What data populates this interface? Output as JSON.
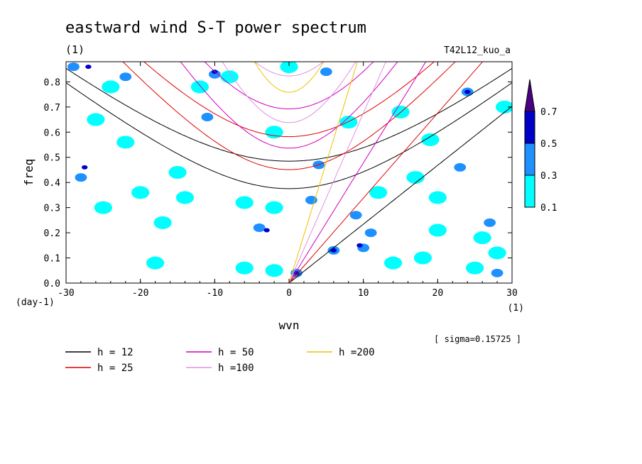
{
  "header": {
    "title": "eastward wind S-T power spectrum",
    "units_note": "(1)",
    "experiment": "T42L12_kuo_a",
    "sigma_note": "[ sigma=0.15725 ]"
  },
  "chart_data": {
    "type": "heatmap",
    "xlabel": "wvn",
    "x_unit": "(1)",
    "ylabel": "freq",
    "y_unit": "(day-1)",
    "xlim": [
      -30,
      30
    ],
    "ylim": [
      0.0,
      0.88
    ],
    "x_ticks": [
      -30,
      -20,
      -10,
      0,
      10,
      20,
      30
    ],
    "y_ticks": [
      0.0,
      0.1,
      0.2,
      0.3,
      0.4,
      0.5,
      0.6,
      0.7,
      0.8
    ],
    "x_tick_labels": [
      "-30",
      "-20",
      "-10",
      "0",
      "10",
      "20",
      "30"
    ],
    "y_tick_labels": [
      "0.0",
      "0.1",
      "0.2",
      "0.3",
      "0.4",
      "0.5",
      "0.6",
      "0.7",
      "0.8"
    ],
    "colorbar": {
      "levels": [
        0.1,
        0.3,
        0.5,
        0.7
      ],
      "level_labels": [
        "0.1",
        "0.3",
        "0.5",
        "0.7"
      ],
      "colors": [
        "#00ffff",
        "#1e90ff",
        "#0000c8",
        "#4b0082"
      ]
    },
    "dispersion_curves": [
      {
        "name": "h = 12",
        "h": 12,
        "color": "#000000"
      },
      {
        "name": "h = 25",
        "h": 25,
        "color": "#e00000"
      },
      {
        "name": "h = 50",
        "h": 50,
        "color": "#d000c0"
      },
      {
        "name": "h =100",
        "h": 100,
        "color": "#e090e0"
      },
      {
        "name": "h =200",
        "h": 200,
        "color": "#f0c000"
      }
    ],
    "blobs": [
      {
        "x": -29,
        "y": 0.86,
        "v": 0.3
      },
      {
        "x": -27,
        "y": 0.86,
        "v": 0.5
      },
      {
        "x": -28,
        "y": 0.42,
        "v": 0.3
      },
      {
        "x": -27.5,
        "y": 0.46,
        "v": 0.5
      },
      {
        "x": -24,
        "y": 0.78,
        "v": 0.1
      },
      {
        "x": -22,
        "y": 0.82,
        "v": 0.3
      },
      {
        "x": -26,
        "y": 0.65,
        "v": 0.1
      },
      {
        "x": -25,
        "y": 0.3,
        "v": 0.1
      },
      {
        "x": -20,
        "y": 0.36,
        "v": 0.1
      },
      {
        "x": -17,
        "y": 0.24,
        "v": 0.1
      },
      {
        "x": -14,
        "y": 0.34,
        "v": 0.1
      },
      {
        "x": -15,
        "y": 0.44,
        "v": 0.1
      },
      {
        "x": -12,
        "y": 0.78,
        "v": 0.1
      },
      {
        "x": -11,
        "y": 0.66,
        "v": 0.3
      },
      {
        "x": -10,
        "y": 0.83,
        "v": 0.3
      },
      {
        "x": -10,
        "y": 0.84,
        "v": 0.5
      },
      {
        "x": -8,
        "y": 0.82,
        "v": 0.1
      },
      {
        "x": -6,
        "y": 0.32,
        "v": 0.1
      },
      {
        "x": -4,
        "y": 0.22,
        "v": 0.3
      },
      {
        "x": -3,
        "y": 0.21,
        "v": 0.5
      },
      {
        "x": -2,
        "y": 0.3,
        "v": 0.1
      },
      {
        "x": 0,
        "y": 0.86,
        "v": 0.1
      },
      {
        "x": 1,
        "y": 0.04,
        "v": 0.3
      },
      {
        "x": 1,
        "y": 0.04,
        "v": 0.5
      },
      {
        "x": -2,
        "y": 0.05,
        "v": 0.1
      },
      {
        "x": 3,
        "y": 0.33,
        "v": 0.3
      },
      {
        "x": 4,
        "y": 0.47,
        "v": 0.3
      },
      {
        "x": 5,
        "y": 0.84,
        "v": 0.3
      },
      {
        "x": 6,
        "y": 0.13,
        "v": 0.3
      },
      {
        "x": 6,
        "y": 0.13,
        "v": 0.5
      },
      {
        "x": 9,
        "y": 0.27,
        "v": 0.3
      },
      {
        "x": 10,
        "y": 0.14,
        "v": 0.3
      },
      {
        "x": 9.5,
        "y": 0.15,
        "v": 0.5
      },
      {
        "x": 11,
        "y": 0.2,
        "v": 0.3
      },
      {
        "x": 12,
        "y": 0.36,
        "v": 0.1
      },
      {
        "x": 15,
        "y": 0.68,
        "v": 0.1
      },
      {
        "x": 17,
        "y": 0.42,
        "v": 0.1
      },
      {
        "x": 18,
        "y": 0.1,
        "v": 0.1
      },
      {
        "x": 20,
        "y": 0.34,
        "v": 0.1
      },
      {
        "x": 23,
        "y": 0.46,
        "v": 0.3
      },
      {
        "x": 24,
        "y": 0.76,
        "v": 0.3
      },
      {
        "x": 24,
        "y": 0.76,
        "v": 0.5
      },
      {
        "x": 26,
        "y": 0.18,
        "v": 0.1
      },
      {
        "x": 27,
        "y": 0.24,
        "v": 0.3
      },
      {
        "x": 28,
        "y": 0.12,
        "v": 0.1
      },
      {
        "x": 29,
        "y": 0.7,
        "v": 0.1
      },
      {
        "x": 28,
        "y": 0.04,
        "v": 0.3
      },
      {
        "x": 25,
        "y": 0.06,
        "v": 0.1
      },
      {
        "x": 20,
        "y": 0.21,
        "v": 0.1
      },
      {
        "x": 14,
        "y": 0.08,
        "v": 0.1
      },
      {
        "x": -18,
        "y": 0.08,
        "v": 0.1
      },
      {
        "x": -6,
        "y": 0.06,
        "v": 0.1
      },
      {
        "x": 19,
        "y": 0.57,
        "v": 0.1
      },
      {
        "x": -2,
        "y": 0.6,
        "v": 0.1
      },
      {
        "x": 8,
        "y": 0.64,
        "v": 0.1
      },
      {
        "x": -22,
        "y": 0.56,
        "v": 0.1
      }
    ]
  }
}
